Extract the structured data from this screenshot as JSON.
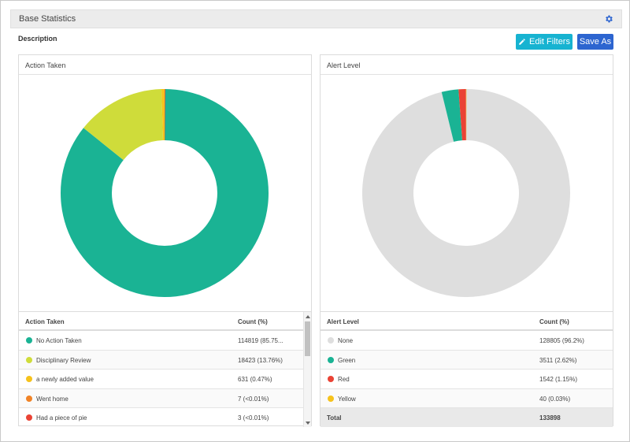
{
  "header": {
    "title": "Base Statistics",
    "settings_icon": "gear-icon"
  },
  "description_label": "Description",
  "toolbar": {
    "edit_filters_label": "Edit Filters",
    "edit_icon": "pencil-icon",
    "save_as_label": "Save As"
  },
  "colors": {
    "teal": "#1ab394",
    "lime": "#cfdc3a",
    "yellow": "#f6c21c",
    "orange": "#f08326",
    "red": "#ea4335",
    "gray": "#dedede",
    "button_edit": "#17b3d1",
    "button_save": "#2d65d0"
  },
  "panels": {
    "action_taken": {
      "title": "Action Taken",
      "table_headers": [
        "Action Taken",
        "Count (%)"
      ],
      "rows": [
        {
          "label": "No Action Taken",
          "count": "114819 (85.75...",
          "color": "#1ab394"
        },
        {
          "label": "Disciplinary Review",
          "count": "18423 (13.76%)",
          "color": "#cfdc3a"
        },
        {
          "label": "a newly added value",
          "count": "631 (0.47%)",
          "color": "#f6c21c"
        },
        {
          "label": "Went home",
          "count": "7 (<0.01%)",
          "color": "#f08326"
        },
        {
          "label": "Had a piece of pie",
          "count": "3 (<0.01%)",
          "color": "#ea4335"
        }
      ]
    },
    "alert_level": {
      "title": "Alert Level",
      "table_headers": [
        "Alert Level",
        "Count (%)"
      ],
      "rows": [
        {
          "label": "None",
          "count": "128805 (96.2%)",
          "color": "#dedede"
        },
        {
          "label": "Green",
          "count": "3511 (2.62%)",
          "color": "#1ab394"
        },
        {
          "label": "Red",
          "count": "1542 (1.15%)",
          "color": "#ea4335"
        },
        {
          "label": "Yellow",
          "count": "40 (0.03%)",
          "color": "#f6c21c"
        }
      ],
      "total_label": "Total",
      "total_value": "133898"
    }
  },
  "chart_data": [
    {
      "type": "pie",
      "subtype": "donut",
      "title": "Action Taken",
      "categories": [
        "No Action Taken",
        "Disciplinary Review",
        "a newly added value",
        "Went home",
        "Had a piece of pie"
      ],
      "values": [
        114819,
        18423,
        631,
        7,
        3
      ],
      "colors": [
        "#1ab394",
        "#cfdc3a",
        "#f6c21c",
        "#f08326",
        "#ea4335"
      ]
    },
    {
      "type": "pie",
      "subtype": "donut",
      "title": "Alert Level",
      "categories": [
        "None",
        "Green",
        "Red",
        "Yellow"
      ],
      "values": [
        128805,
        3511,
        1542,
        40
      ],
      "colors": [
        "#dedede",
        "#1ab394",
        "#ea4335",
        "#f6c21c"
      ]
    }
  ]
}
